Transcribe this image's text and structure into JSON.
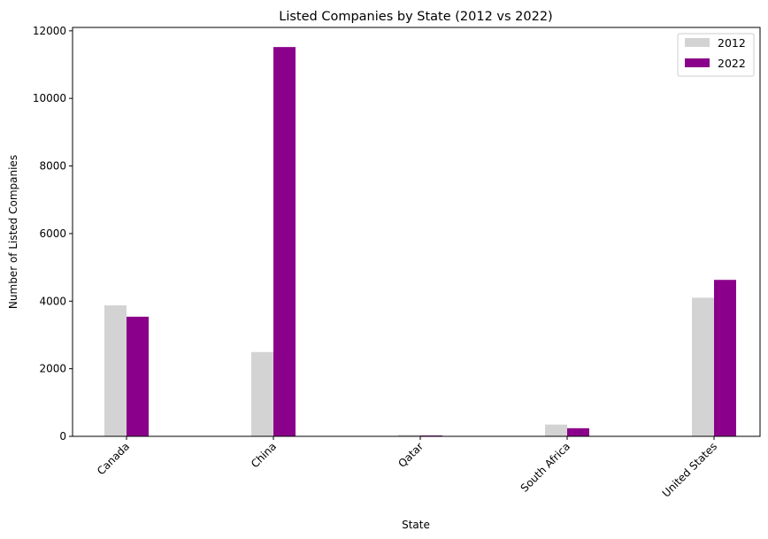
{
  "chart_data": {
    "type": "bar",
    "title": "Listed Companies by State (2012 vs 2022)",
    "xlabel": "State",
    "ylabel": "Number of Listed Companies",
    "categories": [
      "Canada",
      "China",
      "Qatar",
      "South Africa",
      "United States"
    ],
    "series": [
      {
        "name": "2012",
        "color": "#d3d3d3",
        "values": [
          3876,
          2494,
          42,
          348,
          4102
        ]
      },
      {
        "name": "2022",
        "color": "#8b008b",
        "values": [
          3540,
          11520,
          25,
          240,
          4630
        ]
      }
    ],
    "ylim": [
      0,
      12100
    ],
    "yticks": [
      "0",
      "2000",
      "4000",
      "6000",
      "8000",
      "10000",
      "12000"
    ],
    "grid": false,
    "legend_position": "top-right"
  }
}
